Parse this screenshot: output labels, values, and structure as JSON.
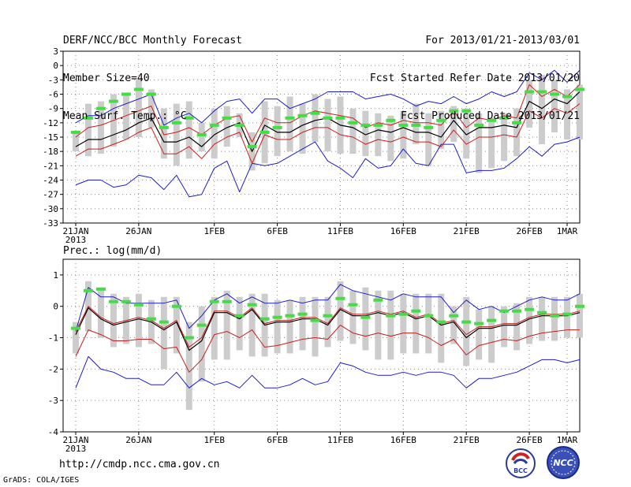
{
  "header": {
    "left_lines": [
      "DERF/NCC/BCC Monthly Forecast",
      "Member Size=40",
      "Mean Surf. Temp.: °C"
    ],
    "right_lines": [
      "For 2013/01/21-2013/03/01",
      "Fcst Started Refer Date 2013/01/20",
      "Fcst Produced Date 2013/01/21"
    ]
  },
  "footer": {
    "url": "http://cmdp.ncc.cma.gov.cn",
    "grads": "GrADS: COLA/IGES",
    "logo_bcc": "BCC",
    "logo_ncc": "NCC"
  },
  "colors": {
    "blue": "#1c1ccc",
    "red": "#cc1c1c",
    "black": "#000000",
    "green": "#44dd44",
    "gray_bar": "#cccccc",
    "grid": "#888888"
  },
  "chart_data": [
    {
      "type": "line",
      "name": "temperature",
      "title": "Mean Surf. Temp.: °C",
      "ylim": [
        -33,
        3
      ],
      "yticks": [
        "3",
        "0",
        "-3",
        "-6",
        "-9",
        "-12",
        "-15",
        "-18",
        "-21",
        "-24",
        "-27",
        "-30",
        "-33"
      ],
      "yvalues": [
        3,
        0,
        -3,
        -6,
        -9,
        -12,
        -15,
        -18,
        -21,
        -24,
        -27,
        -30,
        -33
      ],
      "xticks": [
        "21JAN",
        "26JAN",
        "1FEB",
        "6FEB",
        "11FEB",
        "16FEB",
        "21FEB",
        "26FEB",
        "1MAR"
      ],
      "xtick_days": [
        0,
        5,
        11,
        16,
        21,
        26,
        31,
        36,
        39
      ],
      "year_label": "2013",
      "grid": true,
      "series": {
        "max": [
          -12,
          -10.5,
          -10.5,
          -9,
          -8,
          -7,
          -6,
          -12.5,
          -11,
          -10,
          -12,
          -9.5,
          -7.5,
          -7,
          -10,
          -7,
          -7,
          -9,
          -8,
          -7,
          -5.5,
          -5.5,
          -5.5,
          -7,
          -6.5,
          -6,
          -7,
          -8.5,
          -7.5,
          -8,
          -6.5,
          -8,
          -7,
          -5.5,
          -6.5,
          -5.5,
          -1.5,
          -3,
          -1,
          -3.5,
          -1
        ],
        "p75": [
          -15,
          -13,
          -12.5,
          -11.5,
          -10.5,
          -9.5,
          -8.5,
          -14.5,
          -14,
          -13,
          -14.5,
          -12.5,
          -11,
          -10.5,
          -16,
          -11,
          -12,
          -12,
          -10.5,
          -9.5,
          -10,
          -10.5,
          -11,
          -13,
          -12,
          -12.5,
          -11.5,
          -12,
          -12,
          -12.5,
          -9.5,
          -13,
          -11,
          -11.5,
          -10.5,
          -11,
          -4,
          -6.5,
          -5,
          -6.5,
          -4
        ],
        "mean": [
          -17,
          -15.5,
          -15.5,
          -14.5,
          -13.5,
          -12,
          -11,
          -16,
          -16,
          -15,
          -17,
          -14.5,
          -13,
          -12,
          -18,
          -12.5,
          -14,
          -14,
          -12.5,
          -11.5,
          -11,
          -12.5,
          -13,
          -14.5,
          -13.5,
          -14,
          -13,
          -14,
          -14,
          -15,
          -11.5,
          -14.5,
          -13,
          -13,
          -12.5,
          -13,
          -7.5,
          -9,
          -7,
          -8,
          -5.5
        ],
        "p25": [
          -19,
          -17.5,
          -17.5,
          -16.5,
          -15.5,
          -14,
          -13,
          -18.5,
          -18.5,
          -17,
          -19.5,
          -16.5,
          -15,
          -14,
          -20.5,
          -14.5,
          -15.5,
          -15.5,
          -14,
          -13,
          -13,
          -14.5,
          -15,
          -16.5,
          -15.5,
          -16,
          -15,
          -16,
          -16,
          -17,
          -13.5,
          -16.5,
          -15,
          -15,
          -14.5,
          -15,
          -9.5,
          -11,
          -9,
          -10,
          -8
        ],
        "min": [
          -25,
          -24,
          -24,
          -25.5,
          -25,
          -23,
          -23.5,
          -26,
          -23,
          -27.5,
          -27,
          -21.5,
          -20,
          -26.5,
          -20.5,
          -21,
          -20.5,
          -19,
          -17.5,
          -16,
          -20,
          -21.5,
          -23.5,
          -19.5,
          -21.5,
          -21,
          -17.5,
          -20.5,
          -21,
          -16.5,
          -16.5,
          -22.5,
          -22,
          -22,
          -21.5,
          -19.5,
          -17,
          -19,
          -16.5,
          -16,
          -15
        ],
        "bar_top": [
          -14,
          -8,
          -7.5,
          -6,
          -6,
          -3,
          -5,
          -9,
          -8,
          -7.5,
          -12,
          -9,
          -8.5,
          -10,
          -14,
          -7.5,
          -8.5,
          -6.5,
          -8,
          -6,
          -7,
          -6.5,
          -9,
          -9.5,
          -10,
          -10.5,
          -9.5,
          -8,
          -10,
          -9.5,
          -8.5,
          -9,
          -10,
          -11,
          -10,
          -9,
          -3,
          -2,
          -3,
          -5,
          -4
        ],
        "bar_bottom": [
          -18,
          -19,
          -18.5,
          -17,
          -15.5,
          -15,
          -13,
          -19.5,
          -21,
          -19.5,
          -18,
          -19.5,
          -17,
          -15,
          -22,
          -20.5,
          -19,
          -18,
          -18.5,
          -16,
          -18,
          -18.5,
          -18.5,
          -19,
          -19,
          -20,
          -19.5,
          -16.5,
          -21,
          -17.5,
          -16,
          -19.5,
          -22.5,
          -21.5,
          -20,
          -19,
          -13,
          -16.5,
          -14,
          -15.5,
          -15.5
        ],
        "member_median": [
          -14,
          -11,
          -9,
          -7.5,
          -6,
          -5,
          -6,
          -13,
          -12,
          -11,
          -14.5,
          -12.5,
          -11,
          -12.5,
          -17,
          -14,
          -13,
          -11,
          -10.5,
          -10,
          -11,
          -11,
          -12,
          -12.5,
          -12.5,
          -11.5,
          -12.5,
          -12.5,
          -13,
          -11.5,
          -9.5,
          -9.5,
          -12.5,
          -11.5,
          -11,
          -12,
          -5.5,
          -5.5,
          -6,
          -6.5,
          -5
        ]
      }
    },
    {
      "type": "line",
      "name": "precipitation",
      "title": "Prec.: log(mm/d)",
      "ylim": [
        -4,
        1.5
      ],
      "yticks": [
        "1",
        "0",
        "-1",
        "-2",
        "-3",
        "-4"
      ],
      "yvalues": [
        1,
        0,
        -1,
        -2,
        -3,
        -4
      ],
      "xticks": [
        "21JAN",
        "26JAN",
        "1FEB",
        "6FEB",
        "11FEB",
        "16FEB",
        "21FEB",
        "26FEB",
        "1MAR"
      ],
      "xtick_days": [
        0,
        5,
        11,
        16,
        21,
        26,
        31,
        36,
        39
      ],
      "year_label": "2013",
      "grid": true,
      "series": {
        "max": [
          -0.8,
          0.6,
          0.3,
          0.3,
          0.1,
          0.1,
          0.1,
          0.1,
          0.2,
          -0.7,
          -0.3,
          0.2,
          0.4,
          0.1,
          0.3,
          0.1,
          0.1,
          0.2,
          0.1,
          0.2,
          0.2,
          0.7,
          0.5,
          0.4,
          0.3,
          0.2,
          0.4,
          0.3,
          0.3,
          0.3,
          -0.2,
          0.2,
          -0.1,
          0,
          -0.2,
          0,
          0.2,
          0.3,
          0.2,
          0.2,
          0.4
        ],
        "mean": [
          -0.9,
          -0.05,
          -0.4,
          -0.6,
          -0.5,
          -0.4,
          -0.5,
          -0.75,
          -0.5,
          -1.4,
          -1.1,
          -0.2,
          -0.2,
          -0.4,
          -0.1,
          -0.6,
          -0.5,
          -0.5,
          -0.4,
          -0.4,
          -0.6,
          -0.1,
          -0.3,
          -0.3,
          -0.2,
          -0.3,
          -0.2,
          -0.4,
          -0.3,
          -0.6,
          -0.5,
          -1,
          -0.7,
          -0.7,
          -0.6,
          -0.6,
          -0.4,
          -0.3,
          -0.3,
          -0.3,
          -0.2
        ],
        "p75": [
          -0.8,
          0,
          -0.35,
          -0.55,
          -0.45,
          -0.35,
          -0.45,
          -0.7,
          -0.45,
          -1.3,
          -1.0,
          -0.15,
          -0.15,
          -0.35,
          -0.05,
          -0.55,
          -0.45,
          -0.45,
          -0.35,
          -0.35,
          -0.55,
          -0.05,
          -0.25,
          -0.25,
          -0.15,
          -0.25,
          -0.15,
          -0.35,
          -0.25,
          -0.55,
          -0.45,
          -0.9,
          -0.65,
          -0.65,
          -0.55,
          -0.55,
          -0.35,
          -0.25,
          -0.25,
          -0.25,
          -0.15
        ],
        "p25": [
          -1.6,
          -0.75,
          -0.9,
          -1.1,
          -1.1,
          -1.05,
          -1.05,
          -1.35,
          -1.3,
          -2.1,
          -1.7,
          -0.9,
          -0.8,
          -1,
          -0.75,
          -1.3,
          -1.25,
          -1.15,
          -1.05,
          -1,
          -1.05,
          -0.6,
          -0.85,
          -0.95,
          -0.85,
          -0.95,
          -0.85,
          -0.85,
          -1,
          -1.25,
          -1.05,
          -1.55,
          -1.25,
          -1.15,
          -1.05,
          -1.1,
          -0.95,
          -0.85,
          -0.8,
          -0.75,
          -0.75
        ],
        "min": [
          -2.6,
          -1.6,
          -2,
          -2.1,
          -2.3,
          -2.3,
          -2.5,
          -2.5,
          -2.1,
          -2.6,
          -2.3,
          -2.5,
          -2.4,
          -2.6,
          -2.2,
          -2.6,
          -2.6,
          -2.5,
          -2.3,
          -2.5,
          -2.4,
          -1.8,
          -1.9,
          -2.1,
          -2.2,
          -2.2,
          -2.1,
          -2.2,
          -2.1,
          -2.1,
          -2.2,
          -2.6,
          -2.3,
          -2.3,
          -2.2,
          -2.1,
          -1.9,
          -1.7,
          -1.7,
          -1.8,
          -1.7
        ],
        "bar_top": [
          -0.5,
          0.8,
          0.6,
          0.4,
          0.3,
          0.4,
          0.2,
          0.3,
          0.3,
          -0.5,
          0,
          0.3,
          0.5,
          0.3,
          0.4,
          0.4,
          0.2,
          0.2,
          0.3,
          0.3,
          0.3,
          0.8,
          0.5,
          0.6,
          0.5,
          0.5,
          0.4,
          0.4,
          0.4,
          0.4,
          0,
          0.3,
          -0.1,
          0,
          0,
          0.1,
          0.3,
          0.3,
          0.3,
          0.3,
          0.4
        ],
        "bar_bottom": [
          -1.5,
          -0.8,
          -1,
          -1.3,
          -1.2,
          -1.3,
          -1.2,
          -2,
          -1.5,
          -3.3,
          -2.4,
          -1.7,
          -1.7,
          -1.4,
          -1.6,
          -1.6,
          -1.5,
          -1.5,
          -1.4,
          -1.6,
          -1.3,
          -1.1,
          -1.2,
          -1.4,
          -1.7,
          -1.7,
          -1.5,
          -1.5,
          -1.5,
          -1.8,
          -1.2,
          -1.9,
          -1.7,
          -1.8,
          -1.3,
          -1.4,
          -1.2,
          -1.1,
          -1.1,
          -1,
          -1
        ],
        "member_median": [
          -0.7,
          0.5,
          0.55,
          0.15,
          0.15,
          0.05,
          -0.4,
          -0.5,
          0,
          -1,
          -0.6,
          0.15,
          0.15,
          -0.3,
          0.05,
          -0.4,
          -0.35,
          -0.3,
          -0.25,
          -0.45,
          -0.3,
          0.25,
          0.05,
          -0.35,
          0.2,
          -0.3,
          -0.25,
          -0.15,
          -0.3,
          -0.5,
          -0.3,
          -0.5,
          -0.55,
          -0.45,
          -0.15,
          -0.15,
          -0.1,
          -0.2,
          -0.3,
          -0.25,
          0
        ]
      }
    }
  ]
}
